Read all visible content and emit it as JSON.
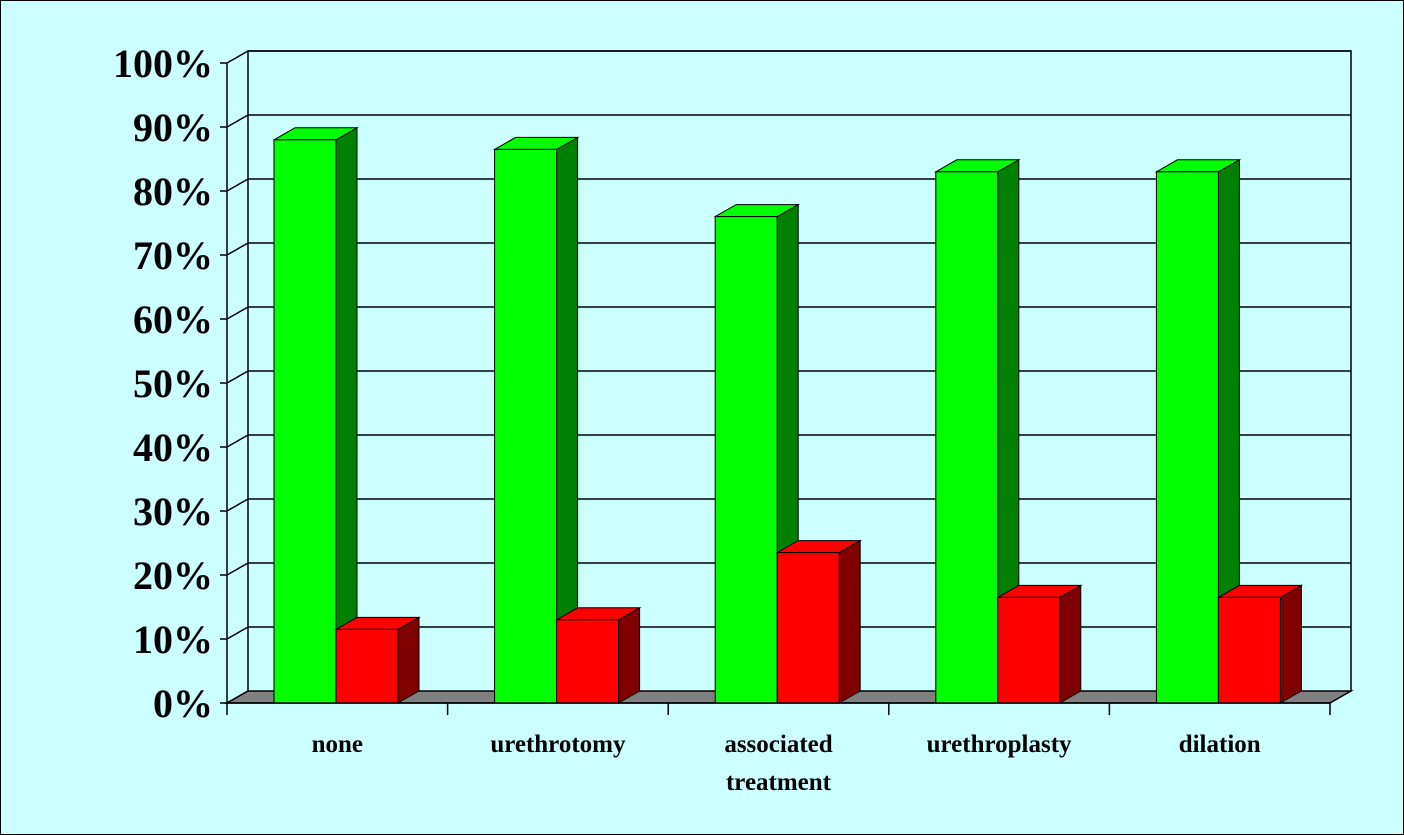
{
  "chart_data": {
    "type": "bar",
    "title": "",
    "xlabel": "",
    "ylabel": "",
    "categories": [
      "none",
      "urethrotomy",
      "associated treatment",
      "urethroplasty",
      "dilation"
    ],
    "category_lines": [
      [
        "none"
      ],
      [
        "urethrotomy"
      ],
      [
        "associated",
        "treatment"
      ],
      [
        "urethroplasty"
      ],
      [
        "dilation"
      ]
    ],
    "series": [
      {
        "values": [
          0.88,
          0.865,
          0.76,
          0.83,
          0.83
        ],
        "color": "#00ff00",
        "side_color": "#008000"
      },
      {
        "values": [
          0.115,
          0.13,
          0.235,
          0.165,
          0.165
        ],
        "color": "#ff0000",
        "side_color": "#800000"
      }
    ],
    "ylim": [
      0,
      1
    ],
    "yticks": [
      "0%",
      "10%",
      "20%",
      "30%",
      "40%",
      "50%",
      "60%",
      "70%",
      "80%",
      "90%",
      "100%"
    ],
    "grid": true,
    "legend": "none",
    "background": "#ccffff",
    "floor_color": "#808080"
  }
}
